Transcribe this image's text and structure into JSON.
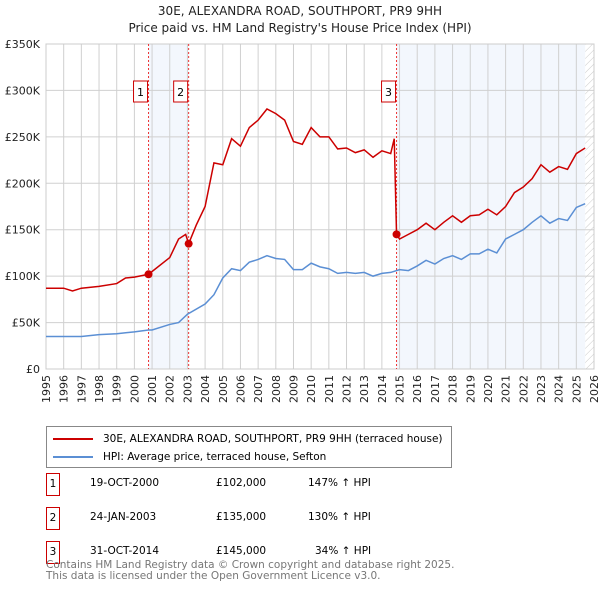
{
  "chart_data": {
    "type": "line",
    "title": "30E, ALEXANDRA ROAD, SOUTHPORT, PR9 9HH",
    "subtitle": "Price paid vs. HM Land Registry's House Price Index (HPI)",
    "xlim": [
      1995,
      2026
    ],
    "ylim": [
      0,
      350000
    ],
    "yticks": [
      {
        "v": 0,
        "l": "£0"
      },
      {
        "v": 50000,
        "l": "£50K"
      },
      {
        "v": 100000,
        "l": "£100K"
      },
      {
        "v": 150000,
        "l": "£150K"
      },
      {
        "v": 200000,
        "l": "£200K"
      },
      {
        "v": 250000,
        "l": "£250K"
      },
      {
        "v": 300000,
        "l": "£300K"
      },
      {
        "v": 350000,
        "l": "£350K"
      }
    ],
    "xticks": [
      "1995",
      "1996",
      "1997",
      "1998",
      "1999",
      "2000",
      "2001",
      "2002",
      "2003",
      "2004",
      "2005",
      "2006",
      "2007",
      "2008",
      "2009",
      "2010",
      "2011",
      "2012",
      "2013",
      "2014",
      "2015",
      "2016",
      "2017",
      "2018",
      "2019",
      "2020",
      "2021",
      "2022",
      "2023",
      "2024",
      "2025",
      "2026"
    ],
    "grid": true,
    "shaded_ranges": [
      [
        2000.8,
        2003.07
      ],
      [
        2014.83,
        2025.5
      ]
    ],
    "hatched_from": 2025.5,
    "series": [
      {
        "name": "30E, ALEXANDRA ROAD, SOUTHPORT, PR9 9HH (terraced house)",
        "color": "#cc0000",
        "x": [
          1995,
          1996,
          1996.5,
          1997,
          1998,
          1999,
          1999.5,
          2000,
          2000.8,
          2001,
          2002,
          2002.5,
          2002.9,
          2003.07,
          2003.5,
          2004,
          2004.5,
          2005,
          2005.5,
          2006,
          2006.5,
          2007,
          2007.5,
          2008,
          2008.5,
          2009,
          2009.5,
          2010,
          2010.5,
          2011,
          2011.5,
          2012,
          2012.5,
          2013,
          2013.5,
          2014,
          2014.5,
          2014.7,
          2014.83,
          2015,
          2015.5,
          2016,
          2016.5,
          2017,
          2017.5,
          2018,
          2018.5,
          2019,
          2019.5,
          2020,
          2020.5,
          2021,
          2021.5,
          2022,
          2022.5,
          2023,
          2023.5,
          2024,
          2024.5,
          2025,
          2025.5
        ],
        "values": [
          87000,
          87000,
          84000,
          87000,
          89000,
          92000,
          98000,
          99000,
          102000,
          105000,
          120000,
          140000,
          145000,
          135000,
          155000,
          175000,
          222000,
          220000,
          248000,
          240000,
          260000,
          268000,
          280000,
          275000,
          268000,
          245000,
          242000,
          260000,
          250000,
          250000,
          237000,
          238000,
          233000,
          236000,
          228000,
          235000,
          232000,
          248000,
          145000,
          140000,
          145000,
          150000,
          157000,
          150000,
          158000,
          165000,
          158000,
          165000,
          166000,
          172000,
          166000,
          175000,
          190000,
          196000,
          205000,
          220000,
          212000,
          218000,
          215000,
          232000,
          238000
        ]
      },
      {
        "name": "HPI: Average price, terraced house, Sefton",
        "color": "#5b8fd4",
        "x": [
          1995,
          1996,
          1997,
          1998,
          1999,
          2000,
          2000.8,
          2001,
          2002,
          2002.5,
          2003,
          2004,
          2004.5,
          2005,
          2005.5,
          2006,
          2006.5,
          2007,
          2007.5,
          2008,
          2008.5,
          2009,
          2009.5,
          2010,
          2010.5,
          2011,
          2011.5,
          2012,
          2012.5,
          2013,
          2013.5,
          2014,
          2014.5,
          2015,
          2015.5,
          2016,
          2016.5,
          2017,
          2017.5,
          2018,
          2018.5,
          2019,
          2019.5,
          2020,
          2020.5,
          2021,
          2021.5,
          2022,
          2022.5,
          2023,
          2023.5,
          2024,
          2024.5,
          2025,
          2025.5
        ],
        "values": [
          35000,
          35000,
          35000,
          37000,
          38000,
          40000,
          42000,
          42000,
          48000,
          50000,
          59000,
          70000,
          80000,
          98000,
          108000,
          106000,
          115000,
          118000,
          122000,
          119000,
          118000,
          107000,
          107000,
          114000,
          110000,
          108000,
          103000,
          104000,
          103000,
          104000,
          100000,
          103000,
          104000,
          107000,
          106000,
          111000,
          117000,
          113000,
          119000,
          122000,
          118000,
          124000,
          124000,
          129000,
          125000,
          140000,
          145000,
          150000,
          158000,
          165000,
          157000,
          162000,
          160000,
          174000,
          178000
        ]
      }
    ],
    "sales": [
      {
        "n": "1",
        "x": 2000.8,
        "value": 102000,
        "date": "19-OCT-2000",
        "price": "£102,000",
        "hpi": "147% ↑ HPI"
      },
      {
        "n": "2",
        "x": 2003.07,
        "value": 135000,
        "date": "24-JAN-2003",
        "price": "£135,000",
        "hpi": "130% ↑ HPI"
      },
      {
        "n": "3",
        "x": 2014.83,
        "value": 145000,
        "date": "31-OCT-2014",
        "price": "£145,000",
        "hpi": "34% ↑ HPI"
      }
    ]
  },
  "footer": [
    "Contains HM Land Registry data © Crown copyright and database right 2025.",
    "This data is licensed under the Open Government Licence v3.0."
  ]
}
